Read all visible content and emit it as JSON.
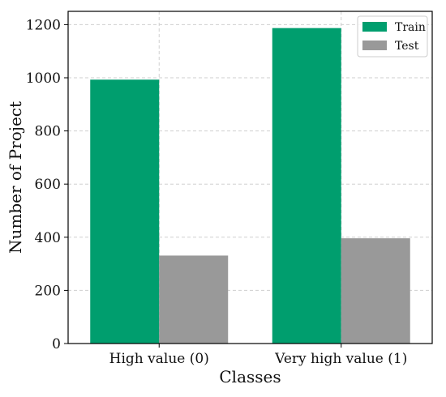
{
  "chart_data": {
    "type": "bar",
    "categories": [
      "High value (0)",
      "Very high value (1)"
    ],
    "series": [
      {
        "name": "Train",
        "values": [
          993,
          1187
        ],
        "color": "#009E6E"
      },
      {
        "name": "Test",
        "values": [
          331,
          396
        ],
        "color": "#999999"
      }
    ],
    "xlabel": "Classes",
    "ylabel": "Number of Project",
    "ylim": [
      0,
      1250
    ],
    "yticks": [
      0,
      200,
      400,
      600,
      800,
      1000,
      1200
    ],
    "grid": true,
    "legend_position": "top-right"
  }
}
